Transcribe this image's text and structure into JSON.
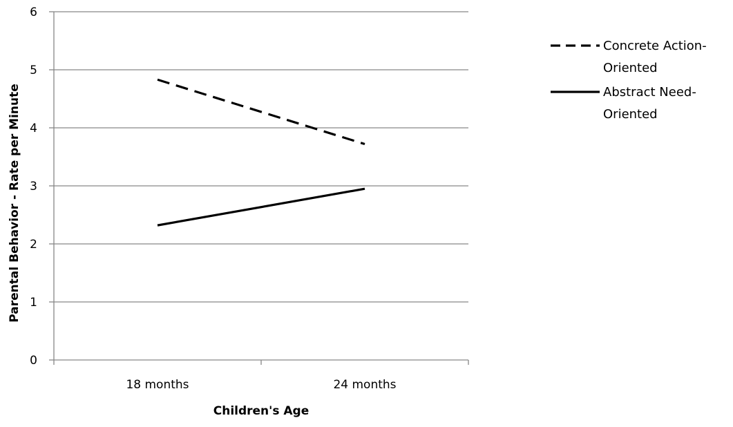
{
  "chart_data": {
    "type": "line",
    "categories": [
      "18 months",
      "24 months"
    ],
    "series": [
      {
        "name": "Concrete Action-Oriented",
        "name_lines": [
          "Concrete Action-",
          "Oriented"
        ],
        "style": "dashed",
        "values": [
          4.83,
          3.72
        ]
      },
      {
        "name": "Abstract Need-Oriented",
        "name_lines": [
          "Abstract Need-",
          "Oriented"
        ],
        "style": "solid",
        "values": [
          2.32,
          2.95
        ]
      }
    ],
    "title": "",
    "xlabel": "Children's Age",
    "ylabel": "Parental Behavior - Rate per Minute",
    "ylim": [
      0,
      6
    ],
    "yticks": [
      "0",
      "1",
      "2",
      "3",
      "4",
      "5",
      "6"
    ],
    "grid": true,
    "legend": "right",
    "colors": {
      "line": "#000000",
      "grid": "#868686",
      "axis": "#868686"
    }
  }
}
